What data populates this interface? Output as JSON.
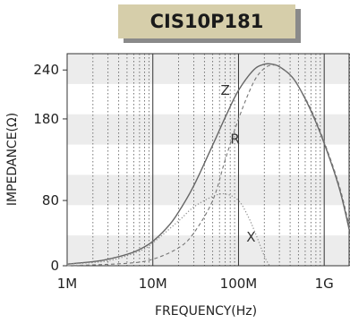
{
  "chart_data": {
    "type": "line",
    "title": "CIS10P181",
    "xlabel": "FREQUENCY(Hz)",
    "ylabel": "IMPEDANCE(Ω)",
    "x_scale": "log",
    "xlim": [
      1000000,
      2000000000
    ],
    "ylim": [
      0,
      260
    ],
    "x_ticks": [
      {
        "value": 1000000,
        "label": "1M"
      },
      {
        "value": 10000000,
        "label": "10M"
      },
      {
        "value": 100000000,
        "label": "100M"
      },
      {
        "value": 1000000000,
        "label": "1G"
      }
    ],
    "y_ticks": [
      {
        "value": 0,
        "label": "0"
      },
      {
        "value": 80,
        "label": "80"
      },
      {
        "value": 180,
        "label": "180"
      },
      {
        "value": 240,
        "label": "240"
      }
    ],
    "grid": true,
    "colors": {
      "band": "#ececec",
      "title_box": "#d6ceaa",
      "title_shadow": "#8a8a8a",
      "z": "#666666",
      "r": "#777777",
      "x": "#8a8a8a"
    },
    "series": [
      {
        "name": "Z",
        "style": "solid",
        "x": [
          1000000,
          2000000,
          3000000,
          5000000,
          7000000,
          10000000,
          15000000,
          20000000,
          30000000,
          50000000,
          70000000,
          100000000,
          150000000,
          200000000,
          250000000,
          300000000,
          400000000,
          500000000,
          700000000,
          1000000000,
          1500000000,
          2000000000
        ],
        "values": [
          2,
          5,
          8,
          14,
          20,
          30,
          48,
          66,
          98,
          148,
          182,
          215,
          240,
          247,
          247,
          244,
          234,
          220,
          190,
          150,
          95,
          40
        ]
      },
      {
        "name": "R",
        "style": "dashed",
        "x": [
          1000000,
          5000000,
          10000000,
          20000000,
          30000000,
          50000000,
          70000000,
          100000000,
          150000000,
          200000000,
          250000000,
          300000000,
          400000000,
          500000000,
          700000000,
          1000000000,
          1500000000,
          2000000000
        ],
        "values": [
          0,
          3,
          8,
          22,
          40,
          80,
          130,
          180,
          225,
          242,
          246,
          244,
          234,
          220,
          192,
          152,
          98,
          45
        ]
      },
      {
        "name": "X",
        "style": "dotted",
        "x": [
          1000000,
          3000000,
          7000000,
          10000000,
          20000000,
          30000000,
          50000000,
          70000000,
          100000000,
          130000000,
          160000000,
          200000000,
          230000000
        ],
        "values": [
          2,
          6,
          18,
          28,
          55,
          72,
          85,
          88,
          80,
          60,
          38,
          12,
          0
        ]
      }
    ],
    "annotations": [
      {
        "text": "Z",
        "x": 100000000,
        "y": 215
      },
      {
        "text": "R",
        "x": 130000000,
        "y": 155
      },
      {
        "text": "X",
        "x": 200000000,
        "y": 35
      }
    ]
  }
}
